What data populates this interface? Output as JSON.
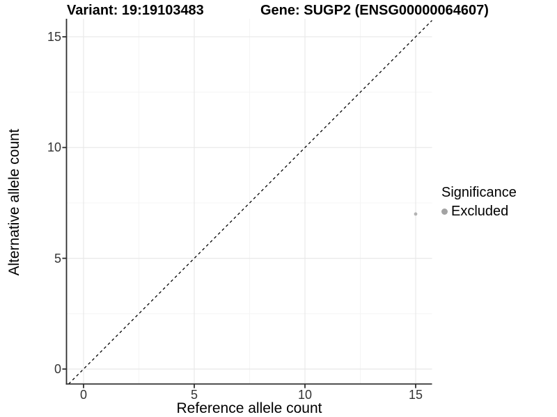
{
  "title": {
    "variant": "Variant: 19:19103483",
    "gene": "Gene: SUGP2 (ENSG00000064607)"
  },
  "x_axis": {
    "label": "Reference allele count",
    "ticks": [
      "0",
      "5",
      "10",
      "15"
    ]
  },
  "y_axis": {
    "label": "Alternative allele count",
    "ticks": [
      "0",
      "5",
      "10",
      "15"
    ]
  },
  "legend": {
    "title": "Significance",
    "items": [
      {
        "label": "Excluded",
        "key_color": "#a3a3a3"
      }
    ]
  },
  "colors": {
    "background": "#ffffff",
    "grid_major": "#e8e8e8",
    "grid_minor": "#f4f4f4",
    "axis": "#2e2e2e",
    "tick_text": "#333333",
    "point": "#b3b3b3",
    "reference_line": "#000000"
  },
  "chart_data": {
    "type": "scatter",
    "title": "Variant: 19:19103483   Gene: SUGP2 (ENSG00000064607)",
    "xlabel": "Reference allele count",
    "ylabel": "Alternative allele count",
    "xticks": [
      0,
      5,
      10,
      15
    ],
    "yticks": [
      0,
      5,
      10,
      15
    ],
    "xlim": [
      -0.77,
      15.74
    ],
    "ylim": [
      -0.67,
      15.8
    ],
    "grid": "major+minor",
    "legend_position": "right",
    "series": [
      {
        "name": "Excluded",
        "marker": "circle",
        "color": "#b3b3b3",
        "size": 2.4,
        "points": [
          {
            "x": 15,
            "y": 7
          }
        ]
      }
    ],
    "annotations": [
      {
        "type": "abline",
        "intercept": 0,
        "slope": 1,
        "linetype": "dashed",
        "color": "#000000"
      }
    ]
  }
}
